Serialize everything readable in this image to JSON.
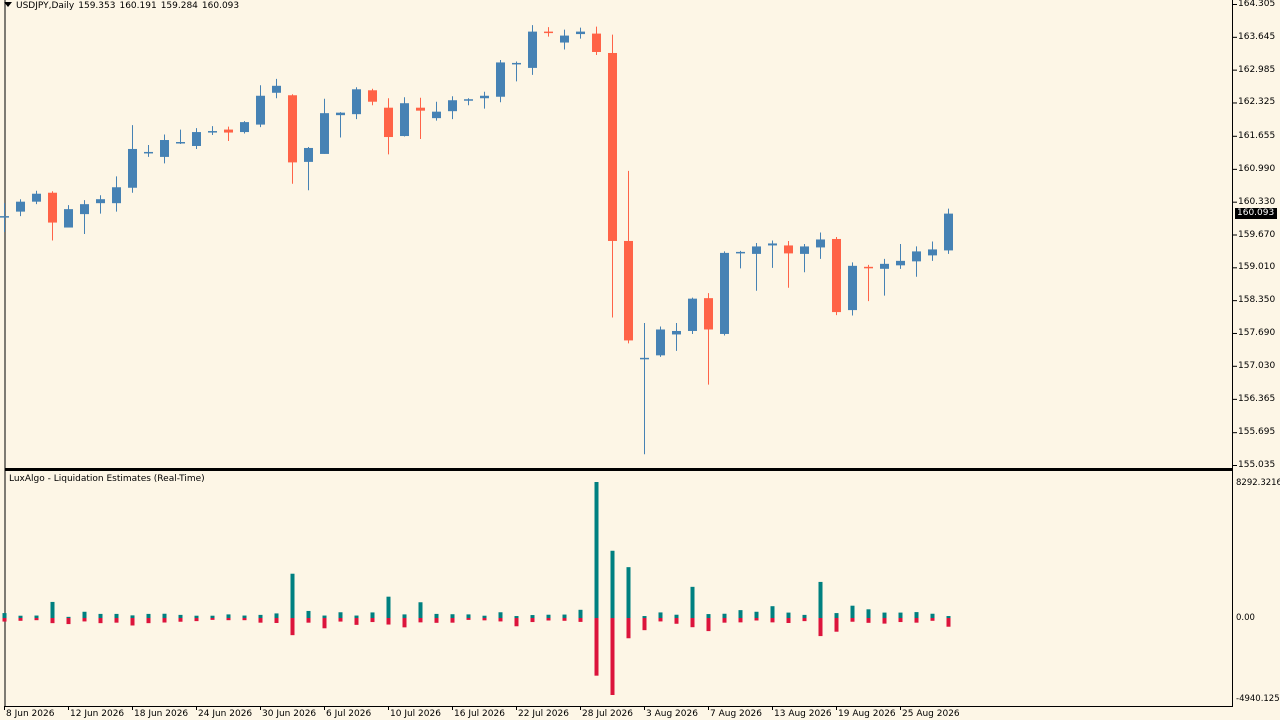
{
  "header": {
    "symbol": "USDJPY,Daily",
    "open": "159.353",
    "high": "160.191",
    "low": "159.284",
    "close": "160.093"
  },
  "indicator": {
    "title": "LuxAlgo - Liquidation Estimates (Real-Time)",
    "scale_labels": [
      "8292.3216",
      "0.00",
      "-4940.1257"
    ]
  },
  "price_axis": {
    "labels": [
      "164.305",
      "163.645",
      "162.985",
      "162.325",
      "161.655",
      "160.990",
      "160.330",
      "159.670",
      "159.010",
      "158.350",
      "157.690",
      "157.030",
      "156.365",
      "155.695",
      "155.035"
    ],
    "current_price": "160.093"
  },
  "time_axis": {
    "labels": [
      "8 Jun 2026",
      "12 Jun 2026",
      "18 Jun 2026",
      "24 Jun 2026",
      "30 Jun 2026",
      "6 Jul 2026",
      "10 Jul 2026",
      "16 Jul 2026",
      "22 Jul 2026",
      "28 Jul 2026",
      "3 Aug 2026",
      "7 Aug 2026",
      "13 Aug 2026",
      "19 Aug 2026",
      "25 Aug 2026"
    ]
  },
  "colors": {
    "background": "#fdf6e6",
    "bull": "#4682b4",
    "bear": "#ff6347",
    "liq_long": "#008080",
    "liq_short": "#dc143c",
    "axis": "#000000"
  },
  "chart_data": {
    "type": "candlestick",
    "symbol": "USDJPY",
    "timeframe": "Daily",
    "ylim": [
      155.035,
      164.305
    ],
    "candles": [
      {
        "o": 160.04,
        "h": 160.3,
        "l": 159.72,
        "c": 160.04
      },
      {
        "o": 160.13,
        "h": 160.38,
        "l": 160.04,
        "c": 160.33
      },
      {
        "o": 160.33,
        "h": 160.55,
        "l": 160.28,
        "c": 160.49
      },
      {
        "o": 160.51,
        "h": 160.54,
        "l": 159.55,
        "c": 159.91
      },
      {
        "o": 159.81,
        "h": 160.26,
        "l": 159.81,
        "c": 160.18
      },
      {
        "o": 160.08,
        "h": 160.36,
        "l": 159.68,
        "c": 160.28
      },
      {
        "o": 160.3,
        "h": 160.46,
        "l": 160.09,
        "c": 160.38
      },
      {
        "o": 160.3,
        "h": 160.84,
        "l": 160.13,
        "c": 160.62
      },
      {
        "o": 160.61,
        "h": 161.87,
        "l": 160.51,
        "c": 161.39
      },
      {
        "o": 161.3,
        "h": 161.47,
        "l": 161.23,
        "c": 161.33
      },
      {
        "o": 161.23,
        "h": 161.68,
        "l": 161.1,
        "c": 161.57
      },
      {
        "o": 161.52,
        "h": 161.78,
        "l": 161.49,
        "c": 161.53
      },
      {
        "o": 161.45,
        "h": 161.81,
        "l": 161.39,
        "c": 161.73
      },
      {
        "o": 161.73,
        "h": 161.85,
        "l": 161.67,
        "c": 161.75
      },
      {
        "o": 161.78,
        "h": 161.84,
        "l": 161.55,
        "c": 161.72
      },
      {
        "o": 161.73,
        "h": 161.95,
        "l": 161.7,
        "c": 161.93
      },
      {
        "o": 161.88,
        "h": 162.67,
        "l": 161.83,
        "c": 162.46
      },
      {
        "o": 162.52,
        "h": 162.8,
        "l": 162.41,
        "c": 162.66
      },
      {
        "o": 162.47,
        "h": 162.49,
        "l": 160.69,
        "c": 161.12
      },
      {
        "o": 161.13,
        "h": 161.43,
        "l": 160.56,
        "c": 161.41
      },
      {
        "o": 161.29,
        "h": 162.4,
        "l": 161.29,
        "c": 162.11
      },
      {
        "o": 162.07,
        "h": 162.13,
        "l": 161.62,
        "c": 162.12
      },
      {
        "o": 162.09,
        "h": 162.63,
        "l": 161.99,
        "c": 162.59
      },
      {
        "o": 162.57,
        "h": 162.6,
        "l": 162.27,
        "c": 162.34
      },
      {
        "o": 162.22,
        "h": 162.41,
        "l": 161.28,
        "c": 161.63
      },
      {
        "o": 161.65,
        "h": 162.43,
        "l": 161.64,
        "c": 162.31
      },
      {
        "o": 162.22,
        "h": 162.42,
        "l": 161.59,
        "c": 162.16
      },
      {
        "o": 162.01,
        "h": 162.34,
        "l": 161.96,
        "c": 162.14
      },
      {
        "o": 162.15,
        "h": 162.45,
        "l": 161.99,
        "c": 162.37
      },
      {
        "o": 162.36,
        "h": 162.41,
        "l": 162.27,
        "c": 162.39
      },
      {
        "o": 162.41,
        "h": 162.54,
        "l": 162.2,
        "c": 162.46
      },
      {
        "o": 162.44,
        "h": 163.18,
        "l": 162.33,
        "c": 163.13
      },
      {
        "o": 163.11,
        "h": 163.15,
        "l": 162.75,
        "c": 163.12
      },
      {
        "o": 163.02,
        "h": 163.88,
        "l": 162.88,
        "c": 163.75
      },
      {
        "o": 163.75,
        "h": 163.84,
        "l": 163.65,
        "c": 163.73
      },
      {
        "o": 163.53,
        "h": 163.79,
        "l": 163.39,
        "c": 163.67
      },
      {
        "o": 163.7,
        "h": 163.83,
        "l": 163.61,
        "c": 163.75
      },
      {
        "o": 163.71,
        "h": 163.85,
        "l": 163.28,
        "c": 163.34
      },
      {
        "o": 163.32,
        "h": 163.69,
        "l": 158.0,
        "c": 159.54
      },
      {
        "o": 159.54,
        "h": 160.95,
        "l": 157.48,
        "c": 157.54
      },
      {
        "o": 157.16,
        "h": 157.89,
        "l": 155.25,
        "c": 157.19
      },
      {
        "o": 157.24,
        "h": 157.82,
        "l": 157.21,
        "c": 157.76
      },
      {
        "o": 157.66,
        "h": 157.89,
        "l": 157.33,
        "c": 157.73
      },
      {
        "o": 157.73,
        "h": 158.4,
        "l": 157.67,
        "c": 158.38
      },
      {
        "o": 158.39,
        "h": 158.49,
        "l": 156.65,
        "c": 157.76
      },
      {
        "o": 157.67,
        "h": 159.33,
        "l": 157.64,
        "c": 159.3
      },
      {
        "o": 159.3,
        "h": 159.34,
        "l": 158.99,
        "c": 159.32
      },
      {
        "o": 159.28,
        "h": 159.5,
        "l": 158.54,
        "c": 159.43
      },
      {
        "o": 159.45,
        "h": 159.55,
        "l": 159.0,
        "c": 159.49
      },
      {
        "o": 159.45,
        "h": 159.54,
        "l": 158.6,
        "c": 159.29
      },
      {
        "o": 159.28,
        "h": 159.48,
        "l": 158.91,
        "c": 159.43
      },
      {
        "o": 159.41,
        "h": 159.71,
        "l": 159.18,
        "c": 159.57
      },
      {
        "o": 159.58,
        "h": 159.62,
        "l": 158.05,
        "c": 158.11
      },
      {
        "o": 158.15,
        "h": 159.11,
        "l": 158.04,
        "c": 159.04
      },
      {
        "o": 159.02,
        "h": 159.06,
        "l": 158.33,
        "c": 159.0
      },
      {
        "o": 158.98,
        "h": 159.18,
        "l": 158.44,
        "c": 159.08
      },
      {
        "o": 159.05,
        "h": 159.48,
        "l": 158.98,
        "c": 159.14
      },
      {
        "o": 159.13,
        "h": 159.43,
        "l": 158.82,
        "c": 159.33
      },
      {
        "o": 159.25,
        "h": 159.53,
        "l": 159.14,
        "c": 159.37
      },
      {
        "o": 159.35,
        "h": 160.19,
        "l": 159.28,
        "c": 160.09
      }
    ]
  },
  "liquidations": {
    "ylim": [
      -4940.1257,
      8292.3216
    ],
    "values": [
      [
        300,
        -230
      ],
      [
        140,
        -180
      ],
      [
        150,
        -140
      ],
      [
        980,
        -330
      ],
      [
        70,
        -390
      ],
      [
        380,
        -220
      ],
      [
        250,
        -330
      ],
      [
        250,
        -300
      ],
      [
        160,
        -480
      ],
      [
        250,
        -330
      ],
      [
        260,
        -290
      ],
      [
        190,
        -240
      ],
      [
        140,
        -200
      ],
      [
        140,
        -120
      ],
      [
        220,
        -140
      ],
      [
        150,
        -140
      ],
      [
        190,
        -300
      ],
      [
        280,
        -320
      ],
      [
        2700,
        -1100
      ],
      [
        430,
        -300
      ],
      [
        150,
        -660
      ],
      [
        350,
        -230
      ],
      [
        150,
        -440
      ],
      [
        340,
        -260
      ],
      [
        1300,
        -420
      ],
      [
        220,
        -600
      ],
      [
        960,
        -280
      ],
      [
        250,
        -310
      ],
      [
        230,
        -300
      ],
      [
        220,
        -120
      ],
      [
        140,
        -150
      ],
      [
        350,
        -220
      ],
      [
        120,
        -530
      ],
      [
        180,
        -260
      ],
      [
        200,
        -160
      ],
      [
        210,
        -180
      ],
      [
        500,
        -250
      ],
      [
        8292,
        -3700
      ],
      [
        4100,
        -4940
      ],
      [
        3100,
        -1300
      ],
      [
        120,
        -780
      ],
      [
        340,
        -220
      ],
      [
        200,
        -370
      ],
      [
        1900,
        -590
      ],
      [
        240,
        -840
      ],
      [
        260,
        -300
      ],
      [
        480,
        -280
      ],
      [
        380,
        -160
      ],
      [
        720,
        -280
      ],
      [
        330,
        -320
      ],
      [
        190,
        -200
      ],
      [
        2200,
        -1160
      ],
      [
        300,
        -880
      ],
      [
        750,
        -240
      ],
      [
        530,
        -310
      ],
      [
        330,
        -360
      ],
      [
        330,
        -260
      ],
      [
        360,
        -300
      ],
      [
        260,
        -180
      ],
      [
        120,
        -560
      ]
    ]
  }
}
